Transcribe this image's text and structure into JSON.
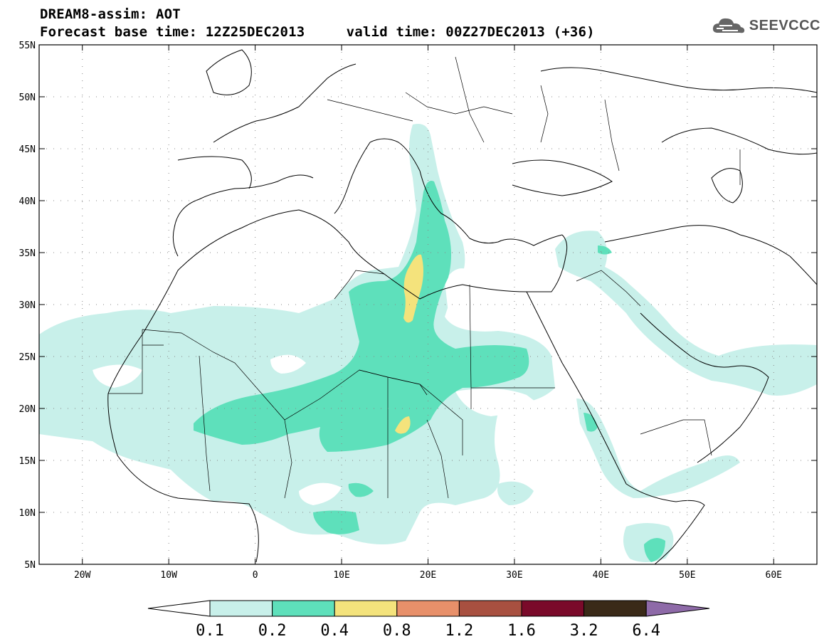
{
  "title": {
    "line1": "DREAM8-assim: AOT",
    "line2": "Forecast base time: 12Z25DEC2013     valid time: 00Z27DEC2013 (+36)"
  },
  "logo": {
    "text": "SEEVCCC",
    "icon": "cloud-icon"
  },
  "map": {
    "lat_labels": [
      "55N",
      "50N",
      "45N",
      "40N",
      "35N",
      "30N",
      "25N",
      "20N",
      "15N",
      "10N",
      "5N"
    ],
    "lon_labels": [
      "20W",
      "10W",
      "0",
      "10E",
      "20E",
      "30E",
      "40E",
      "50E",
      "60E"
    ],
    "lat_range": [
      5,
      55
    ],
    "lon_range": [
      -25,
      65
    ]
  },
  "legend": {
    "labels": [
      "0.1",
      "0.2",
      "0.4",
      "0.8",
      "1.2",
      "1.6",
      "3.2",
      "6.4"
    ],
    "colors": [
      "#ffffff",
      "#c8f0ea",
      "#5ee0bb",
      "#f4e37c",
      "#e8906a",
      "#a85040",
      "#7a0a2a",
      "#3a2a18",
      "#8e6aa8"
    ]
  },
  "colors": {
    "aot_0_1": "#c8f0ea",
    "aot_0_2": "#5ee0bb",
    "aot_0_4": "#f4e37c"
  }
}
